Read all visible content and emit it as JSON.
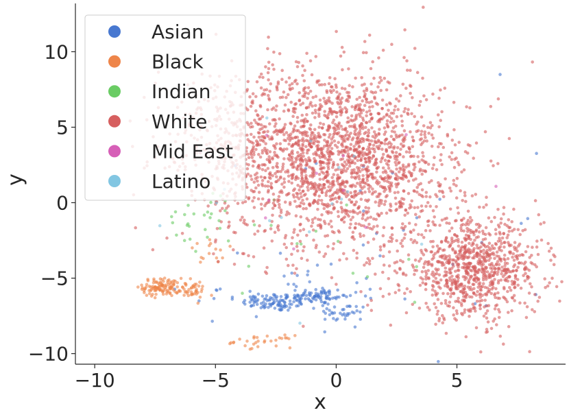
{
  "chart_data": {
    "type": "scatter",
    "xlabel": "x",
    "ylabel": "y",
    "xlim": [
      -10.8,
      9.5
    ],
    "ylim": [
      -10.7,
      13.2
    ],
    "xticks": [
      -10,
      -5,
      0,
      5
    ],
    "yticks": [
      -10,
      -5,
      0,
      5,
      10
    ],
    "x_tick_labels": [
      "−10",
      "−5",
      "0",
      "5"
    ],
    "y_tick_labels": [
      "−10",
      "−5",
      "0",
      "5",
      "10"
    ],
    "grid": false,
    "legend_placement": "upper-left",
    "series": [
      {
        "name": "Asian",
        "color": "#4878d0",
        "clusters": [
          {
            "cx": -2.5,
            "cy": -6.6,
            "sx": 0.7,
            "sy": 0.3,
            "n": 90
          },
          {
            "cx": -0.8,
            "cy": -6.2,
            "sx": 0.6,
            "sy": 0.3,
            "n": 70
          },
          {
            "cx": 0.3,
            "cy": -7.3,
            "sx": 0.5,
            "sy": 0.3,
            "n": 35
          },
          {
            "cx": -2.0,
            "cy": -6.0,
            "sx": 2.0,
            "sy": 0.8,
            "n": 45
          },
          {
            "cx": 2.0,
            "cy": -2.0,
            "sx": 3.5,
            "sy": 4.5,
            "n": 30
          }
        ]
      },
      {
        "name": "Black",
        "color": "#ee854a",
        "clusters": [
          {
            "cx": -7.2,
            "cy": -5.6,
            "sx": 0.4,
            "sy": 0.3,
            "n": 110
          },
          {
            "cx": -6.0,
            "cy": -5.8,
            "sx": 0.3,
            "sy": 0.3,
            "n": 40
          },
          {
            "cx": -3.0,
            "cy": -9.2,
            "sx": 0.6,
            "sy": 0.2,
            "n": 30
          },
          {
            "cx": -5.0,
            "cy": -3.3,
            "sx": 0.6,
            "sy": 0.4,
            "n": 15
          }
        ]
      },
      {
        "name": "Indian",
        "color": "#6acc64",
        "clusters": [
          {
            "cx": -5.5,
            "cy": -1.2,
            "sx": 1.2,
            "sy": 1.2,
            "n": 30
          },
          {
            "cx": 0.5,
            "cy": -4.0,
            "sx": 3.0,
            "sy": 3.0,
            "n": 15
          }
        ]
      },
      {
        "name": "White",
        "color": "#d65f5f",
        "clusters": [
          {
            "cx": -0.2,
            "cy": 3.0,
            "sx": 2.3,
            "sy": 2.9,
            "n": 1900
          },
          {
            "cx": 5.7,
            "cy": -4.4,
            "sx": 1.4,
            "sy": 1.6,
            "n": 900
          },
          {
            "cx": -4.5,
            "cy": 4.5,
            "sx": 1.6,
            "sy": 2.5,
            "n": 220
          },
          {
            "cx": 3.0,
            "cy": 1.5,
            "sx": 1.2,
            "sy": 3.0,
            "n": 150
          }
        ]
      },
      {
        "name": "Mid East",
        "color": "#d65fb7",
        "clusters": [
          {
            "cx": -1.0,
            "cy": 0.0,
            "sx": 2.5,
            "sy": 3.0,
            "n": 10
          }
        ]
      },
      {
        "name": "Latino",
        "color": "#82c6e2",
        "clusters": [
          {
            "cx": -1.0,
            "cy": 0.0,
            "sx": 2.5,
            "sy": 3.0,
            "n": 15
          }
        ]
      }
    ]
  }
}
